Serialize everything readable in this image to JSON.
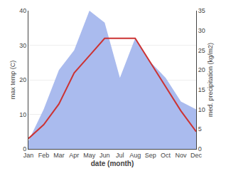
{
  "chart_data": {
    "type": "line",
    "categories": [
      "Jan",
      "Feb",
      "Mar",
      "Apr",
      "May",
      "Jun",
      "Jul",
      "Aug",
      "Sep",
      "Oct",
      "Nov",
      "Dec"
    ],
    "series": [
      {
        "type": "area",
        "axis": "y2",
        "color": "#aabbee",
        "values": [
          2,
          10,
          20,
          25,
          35,
          32,
          18,
          28,
          22,
          18,
          12,
          10
        ]
      },
      {
        "type": "line",
        "color": "#cc3333",
        "values": [
          3,
          7,
          13,
          22,
          27,
          32,
          32,
          32,
          25,
          18,
          11,
          5
        ]
      }
    ],
    "xlabel": "date (month)",
    "ylabel": "max temp (C)",
    "y2label": "med. precipitation (kg/m2)",
    "ylim": [
      0,
      40
    ],
    "yticks": [
      0,
      10,
      20,
      30,
      40
    ],
    "y2lim": [
      0,
      35
    ],
    "y2ticks": [
      0,
      5,
      10,
      15,
      20,
      25,
      30,
      35
    ],
    "grid": true
  }
}
